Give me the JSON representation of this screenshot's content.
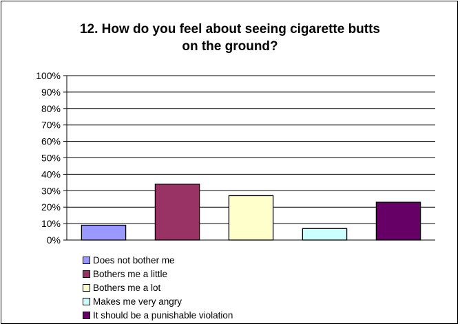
{
  "chart_data": {
    "type": "bar",
    "title_lines": [
      "12. How do you feel about seeing cigarette butts",
      "on the ground?"
    ],
    "categories": [
      "Does not bother me",
      "Bothers me a little",
      "Bothers me a lot",
      "Makes me very angry",
      "It should be a punishable violation"
    ],
    "values": [
      9,
      34,
      27,
      7,
      23
    ],
    "colors": [
      "#9999ff",
      "#993366",
      "#ffffcc",
      "#ccffff",
      "#660066"
    ],
    "ylim": [
      0,
      100
    ],
    "yticks": [
      "0%",
      "10%",
      "20%",
      "30%",
      "40%",
      "50%",
      "60%",
      "70%",
      "80%",
      "90%",
      "100%"
    ],
    "grid": true,
    "legend_position": "bottom-left"
  }
}
